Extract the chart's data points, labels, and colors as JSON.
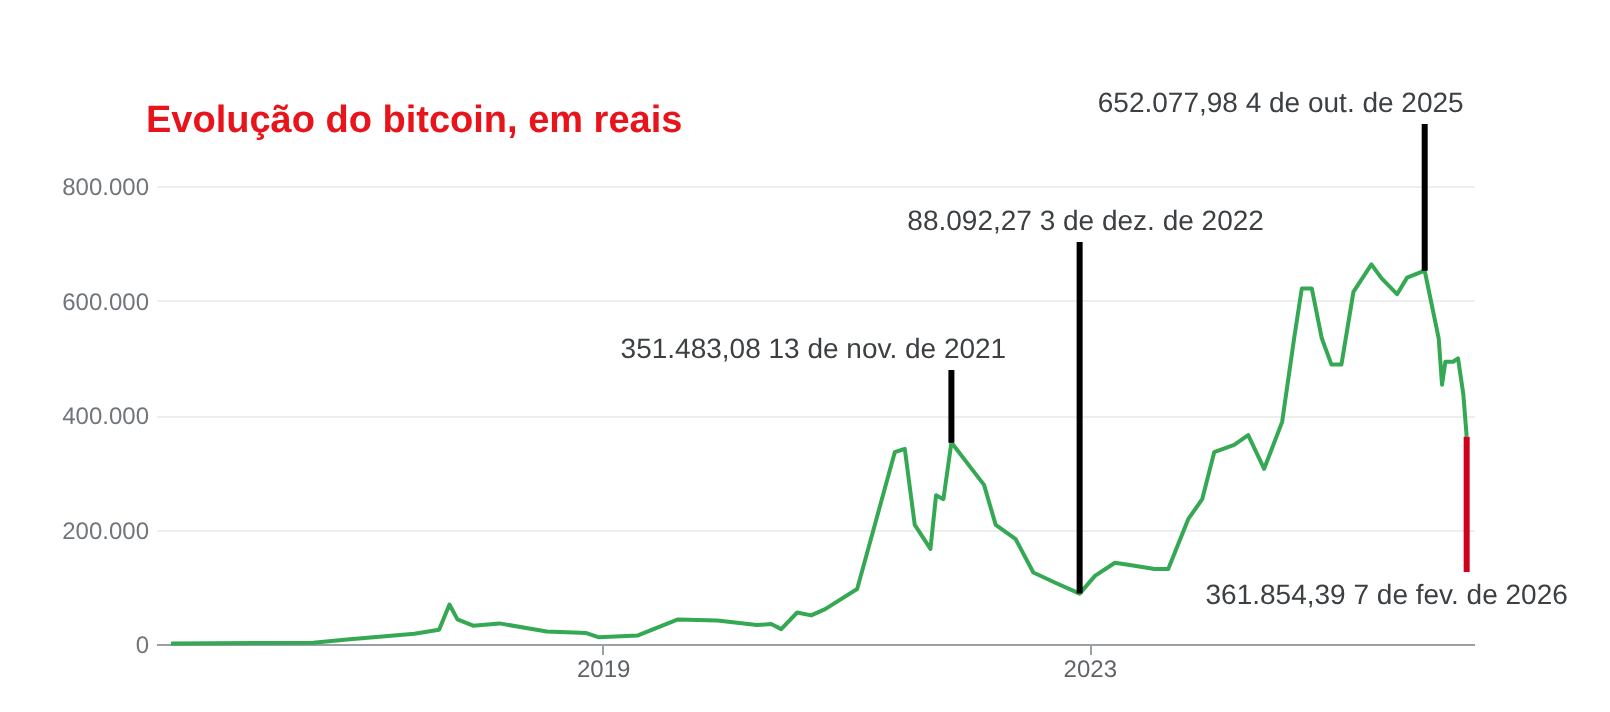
{
  "chart_data": {
    "type": "line",
    "title": "Evolução do bitcoin, em reais",
    "x": [
      "2015-06-15",
      "2016-08-15",
      "2016-11-25",
      "2017-06-15",
      "2017-08-28",
      "2017-09-28",
      "2017-10-22",
      "2017-12-08",
      "2018-02-25",
      "2018-07-17",
      "2018-11-13",
      "2018-12-19",
      "2019-04-17",
      "2019-08-15",
      "2019-12-12",
      "2020-04-08",
      "2020-05-21",
      "2020-06-20",
      "2020-08-07",
      "2020-09-18",
      "2020-10-30",
      "2021-02-03",
      "2021-03-28",
      "2021-05-27",
      "2021-06-26",
      "2021-07-26",
      "2021-09-11",
      "2021-09-28",
      "2021-10-20",
      "2021-11-13",
      "2022-02-19",
      "2022-03-26",
      "2022-05-25",
      "2022-07-17",
      "2022-09-21",
      "2022-12-03",
      "2023-01-18",
      "2023-03-19",
      "2023-05-12",
      "2023-07-16",
      "2023-08-26",
      "2023-10-25",
      "2023-12-06",
      "2024-01-11",
      "2024-03-11",
      "2024-04-22",
      "2024-06-09",
      "2024-08-02",
      "2024-09-07",
      "2024-09-30",
      "2024-10-30",
      "2024-11-29",
      "2024-12-28",
      "2025-01-27",
      "2025-03-04",
      "2025-04-27",
      "2025-05-27",
      "2025-07-13",
      "2025-08-12",
      "2025-10-04",
      "2025-10-25",
      "2025-11-15",
      "2025-11-25",
      "2025-12-05",
      "2025-12-28",
      "2026-01-12",
      "2026-01-28",
      "2026-02-07"
    ],
    "series": [
      {
        "color": "#34a853",
        "values": [
          1000,
          2000,
          8000,
          18000,
          25000,
          69000,
          43000,
          32000,
          36000,
          22000,
          19000,
          12000,
          15000,
          43000,
          41000,
          33000,
          35000,
          26000,
          55000,
          50000,
          61000,
          96000,
          208000,
          335000,
          341000,
          208000,
          166000,
          260000,
          253000,
          352000,
          278000,
          208000,
          183000,
          125000,
          107000,
          88000,
          119000,
          142000,
          137000,
          131000,
          131000,
          218000,
          253000,
          335000,
          348000,
          365000,
          306000,
          388000,
          534000,
          621000,
          621000,
          534000,
          488000,
          488000,
          615000,
          663000,
          639000,
          611000,
          640000,
          652000,
          593000,
          534000,
          453000,
          493000,
          493000,
          499000,
          436000,
          362000
        ]
      }
    ],
    "xlim": [
      "2015-05-01",
      "2026-03-01"
    ],
    "xticks": [
      {
        "value": "2019-01-01",
        "label": "2019"
      },
      {
        "value": "2023-01-01",
        "label": "2023"
      }
    ],
    "ylim": [
      0,
      800000
    ],
    "yticks": [
      {
        "value": 0,
        "label": "0"
      },
      {
        "value": 200000,
        "label": "200.000"
      },
      {
        "value": 400000,
        "label": "400.000"
      },
      {
        "value": 600000,
        "label": "600.000"
      },
      {
        "value": 800000,
        "label": "800.000"
      }
    ],
    "grid": "y",
    "marker": "none",
    "line_style": "solid",
    "annotations": [
      {
        "text": "351.483,08  13 de nov. de 2021",
        "x": "2021-11-13",
        "y": 351483.08
      },
      {
        "text": "88.092,27  3 de dez. de 2022",
        "x": "2022-12-03",
        "y": 88092.27
      },
      {
        "text": "652.077,98  4 de out. de 2025",
        "x": "2025-10-04",
        "y": 652077.98
      },
      {
        "text": "361.854,39  7 de fev. de 2026",
        "x": "2026-02-07",
        "y": 361854.39
      }
    ]
  }
}
